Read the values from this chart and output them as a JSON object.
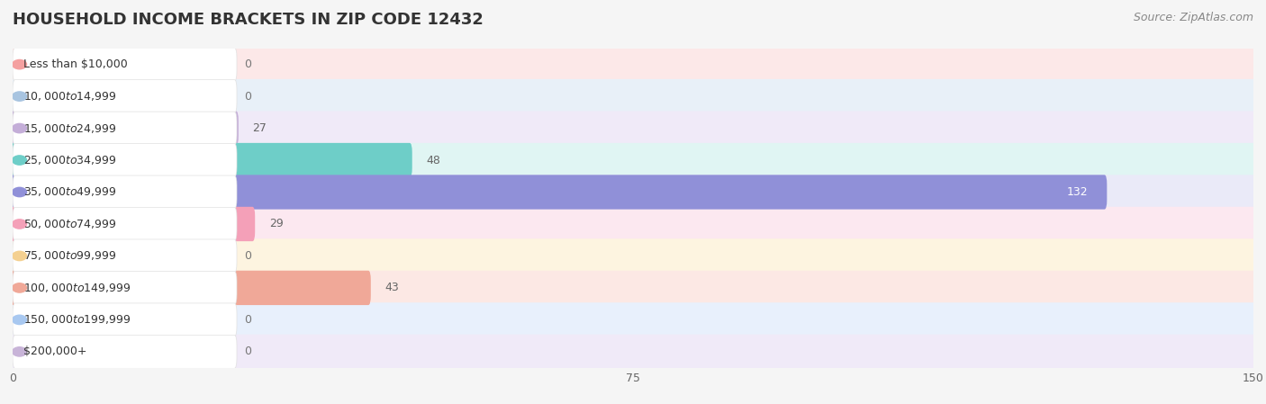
{
  "title": "HOUSEHOLD INCOME BRACKETS IN ZIP CODE 12432",
  "source": "Source: ZipAtlas.com",
  "categories": [
    "Less than $10,000",
    "$10,000 to $14,999",
    "$15,000 to $24,999",
    "$25,000 to $34,999",
    "$35,000 to $49,999",
    "$50,000 to $74,999",
    "$75,000 to $99,999",
    "$100,000 to $149,999",
    "$150,000 to $199,999",
    "$200,000+"
  ],
  "values": [
    0,
    0,
    27,
    48,
    132,
    29,
    0,
    43,
    0,
    0
  ],
  "bar_colors": [
    "#f4a0a0",
    "#a8c4e0",
    "#c4aed8",
    "#6ecec8",
    "#9090d8",
    "#f4a0b8",
    "#f4d090",
    "#f0a898",
    "#a8c8f0",
    "#c8b4d8"
  ],
  "bar_bg_colors": [
    "#fce8e8",
    "#e8f0f8",
    "#f0eaf8",
    "#e0f5f3",
    "#eaeaf8",
    "#fce8f0",
    "#fdf4e0",
    "#fce8e4",
    "#e8f0fc",
    "#f0eaf8"
  ],
  "xlim": [
    0,
    150
  ],
  "xticks": [
    0,
    75,
    150
  ],
  "label_color_zero": "#777777",
  "label_color_nonzero_dark": "#ffffff",
  "label_color_nonzero_light": "#666666",
  "bg_color": "#f5f5f5",
  "row_bg_color": "#ffffff",
  "title_fontsize": 13,
  "source_fontsize": 9,
  "value_fontsize": 9,
  "cat_fontsize": 9
}
